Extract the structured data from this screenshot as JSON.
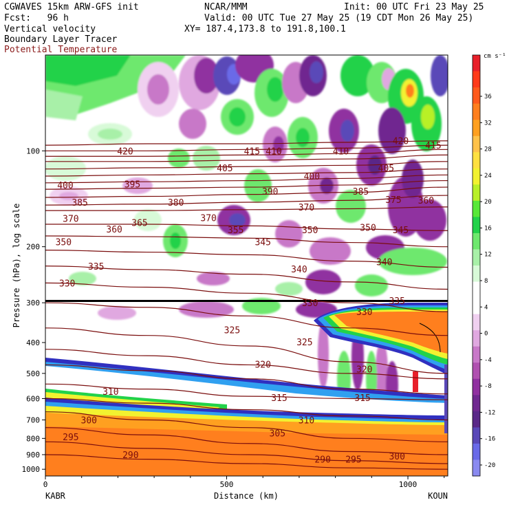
{
  "header": {
    "model": "CGWAVES 15km ARW-GFS init",
    "org": "NCAR/MMM",
    "init": "Init: 00 UTC Fri 23 May 25",
    "fcst": "Fcst:   96 h",
    "valid": "Valid: 00 UTC Tue 27 May 25 (19 CDT Mon 26 May 25)",
    "field1": "Vertical velocity",
    "field2": "Boundary Layer Tracer",
    "field3": "Potential Temperature",
    "xy": "XY= 187.4,173.8 to 191.8,100.1"
  },
  "colors": {
    "theta": "#7a0d0d",
    "theta_text": "#8b1a1a"
  },
  "chart_data": {
    "type": "heatmap",
    "xlabel": "Distance (km)",
    "ylabel": "Pressure (hPa), log scale",
    "xlim": [
      0,
      1110
    ],
    "ylim": [
      1050,
      50
    ],
    "y_scale": "log",
    "x_ticks": [
      {
        "v": 0,
        "label": "0"
      },
      {
        "v": 500,
        "label": "500"
      },
      {
        "v": 1000,
        "label": "1000"
      }
    ],
    "y_ticks": [
      {
        "v": 100,
        "label": "100"
      },
      {
        "v": 200,
        "label": "200"
      },
      {
        "v": 300,
        "label": "300"
      },
      {
        "v": 400,
        "label": "400"
      },
      {
        "v": 500,
        "label": "500"
      },
      {
        "v": 600,
        "label": "600"
      },
      {
        "v": 700,
        "label": "700"
      },
      {
        "v": 800,
        "label": "800"
      },
      {
        "v": 900,
        "label": "900"
      },
      {
        "v": 1000,
        "label": "1000"
      }
    ],
    "endpoints": {
      "left": "KABR",
      "right": "KOUN"
    },
    "colorbar": {
      "unit": "cm s⁻¹",
      "ticks": [
        "36",
        "32",
        "28",
        "24",
        "20",
        "16",
        "12",
        "8",
        "4",
        "0",
        "-4",
        "-8",
        "-12",
        "-16",
        "-20"
      ],
      "colors": [
        "#e8202a",
        "#ff3a1a",
        "#ff5a1c",
        "#ff7f1e",
        "#ffa020",
        "#ffc24a",
        "#ffe040",
        "#f2f230",
        "#b8f028",
        "#58e838",
        "#22d24a",
        "#6ee86e",
        "#a8f0a8",
        "#d8fad8",
        "#ffffff",
        "#ffffff",
        "#f0d0f0",
        "#e0a8e0",
        "#c878c8",
        "#b050b0",
        "#9030a0",
        "#702890",
        "#5a2888",
        "#5a48b8",
        "#6a6ae8",
        "#8a8af0"
      ]
    },
    "theta_labels": [
      {
        "x": 220,
        "p": 100,
        "label": "420"
      },
      {
        "x": 570,
        "p": 100,
        "label": "415"
      },
      {
        "x": 630,
        "p": 100,
        "label": "410"
      },
      {
        "x": 815,
        "p": 100,
        "label": "410"
      },
      {
        "x": 980,
        "p": 93,
        "label": "420"
      },
      {
        "x": 1070,
        "p": 96,
        "label": "415"
      },
      {
        "x": 495,
        "p": 113,
        "label": "405"
      },
      {
        "x": 940,
        "p": 113,
        "label": "405"
      },
      {
        "x": 55,
        "p": 128,
        "label": "400"
      },
      {
        "x": 735,
        "p": 120,
        "label": "400"
      },
      {
        "x": 240,
        "p": 127,
        "label": "395"
      },
      {
        "x": 620,
        "p": 134,
        "label": "390"
      },
      {
        "x": 870,
        "p": 134,
        "label": "385"
      },
      {
        "x": 95,
        "p": 145,
        "label": "385"
      },
      {
        "x": 360,
        "p": 145,
        "label": "380"
      },
      {
        "x": 960,
        "p": 142,
        "label": "375"
      },
      {
        "x": 1050,
        "p": 143,
        "label": "360"
      },
      {
        "x": 70,
        "p": 163,
        "label": "370"
      },
      {
        "x": 450,
        "p": 162,
        "label": "370"
      },
      {
        "x": 720,
        "p": 150,
        "label": "370"
      },
      {
        "x": 260,
        "p": 168,
        "label": "365"
      },
      {
        "x": 190,
        "p": 176,
        "label": "360"
      },
      {
        "x": 525,
        "p": 177,
        "label": "355"
      },
      {
        "x": 730,
        "p": 177,
        "label": "350"
      },
      {
        "x": 890,
        "p": 174,
        "label": "350"
      },
      {
        "x": 980,
        "p": 177,
        "label": "345"
      },
      {
        "x": 50,
        "p": 193,
        "label": "350"
      },
      {
        "x": 600,
        "p": 193,
        "label": "345"
      },
      {
        "x": 935,
        "p": 223,
        "label": "340"
      },
      {
        "x": 700,
        "p": 235,
        "label": "340"
      },
      {
        "x": 140,
        "p": 230,
        "label": "335"
      },
      {
        "x": 60,
        "p": 260,
        "label": "330"
      },
      {
        "x": 730,
        "p": 300,
        "label": "330"
      },
      {
        "x": 880,
        "p": 320,
        "label": "330"
      },
      {
        "x": 970,
        "p": 295,
        "label": "335"
      },
      {
        "x": 515,
        "p": 365,
        "label": "325"
      },
      {
        "x": 715,
        "p": 398,
        "label": "325"
      },
      {
        "x": 600,
        "p": 468,
        "label": "320"
      },
      {
        "x": 880,
        "p": 485,
        "label": "320"
      },
      {
        "x": 180,
        "p": 570,
        "label": "310"
      },
      {
        "x": 645,
        "p": 595,
        "label": "315"
      },
      {
        "x": 875,
        "p": 595,
        "label": "315"
      },
      {
        "x": 720,
        "p": 700,
        "label": "310"
      },
      {
        "x": 120,
        "p": 700,
        "label": "300"
      },
      {
        "x": 640,
        "p": 770,
        "label": "305"
      },
      {
        "x": 70,
        "p": 790,
        "label": "295"
      },
      {
        "x": 235,
        "p": 900,
        "label": "290"
      },
      {
        "x": 765,
        "p": 930,
        "label": "290"
      },
      {
        "x": 850,
        "p": 930,
        "label": "295"
      },
      {
        "x": 970,
        "p": 910,
        "label": "300"
      }
    ]
  }
}
